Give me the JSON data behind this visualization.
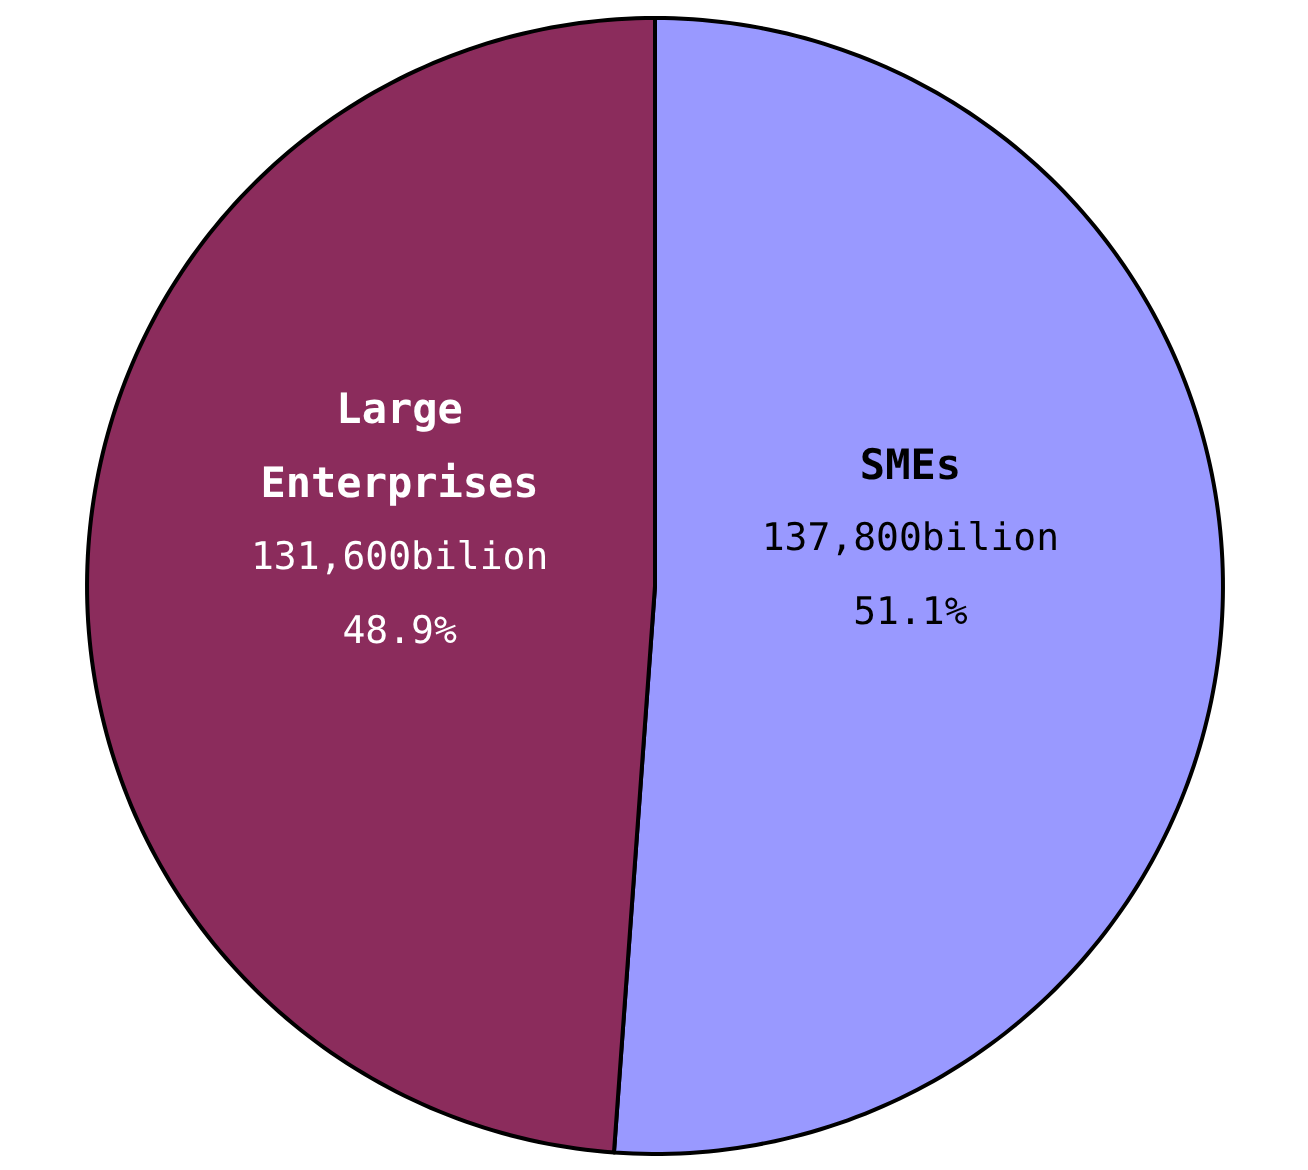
{
  "chart_data": {
    "type": "pie",
    "categories": [
      "SMEs",
      "Large Enterprises"
    ],
    "values": [
      137800,
      131600
    ],
    "colors": [
      "#9999ff",
      "#8b2c5c"
    ],
    "value_labels": [
      "137,800bilion\n51.1%",
      "131,600bilion\n48.9%"
    ]
  }
}
